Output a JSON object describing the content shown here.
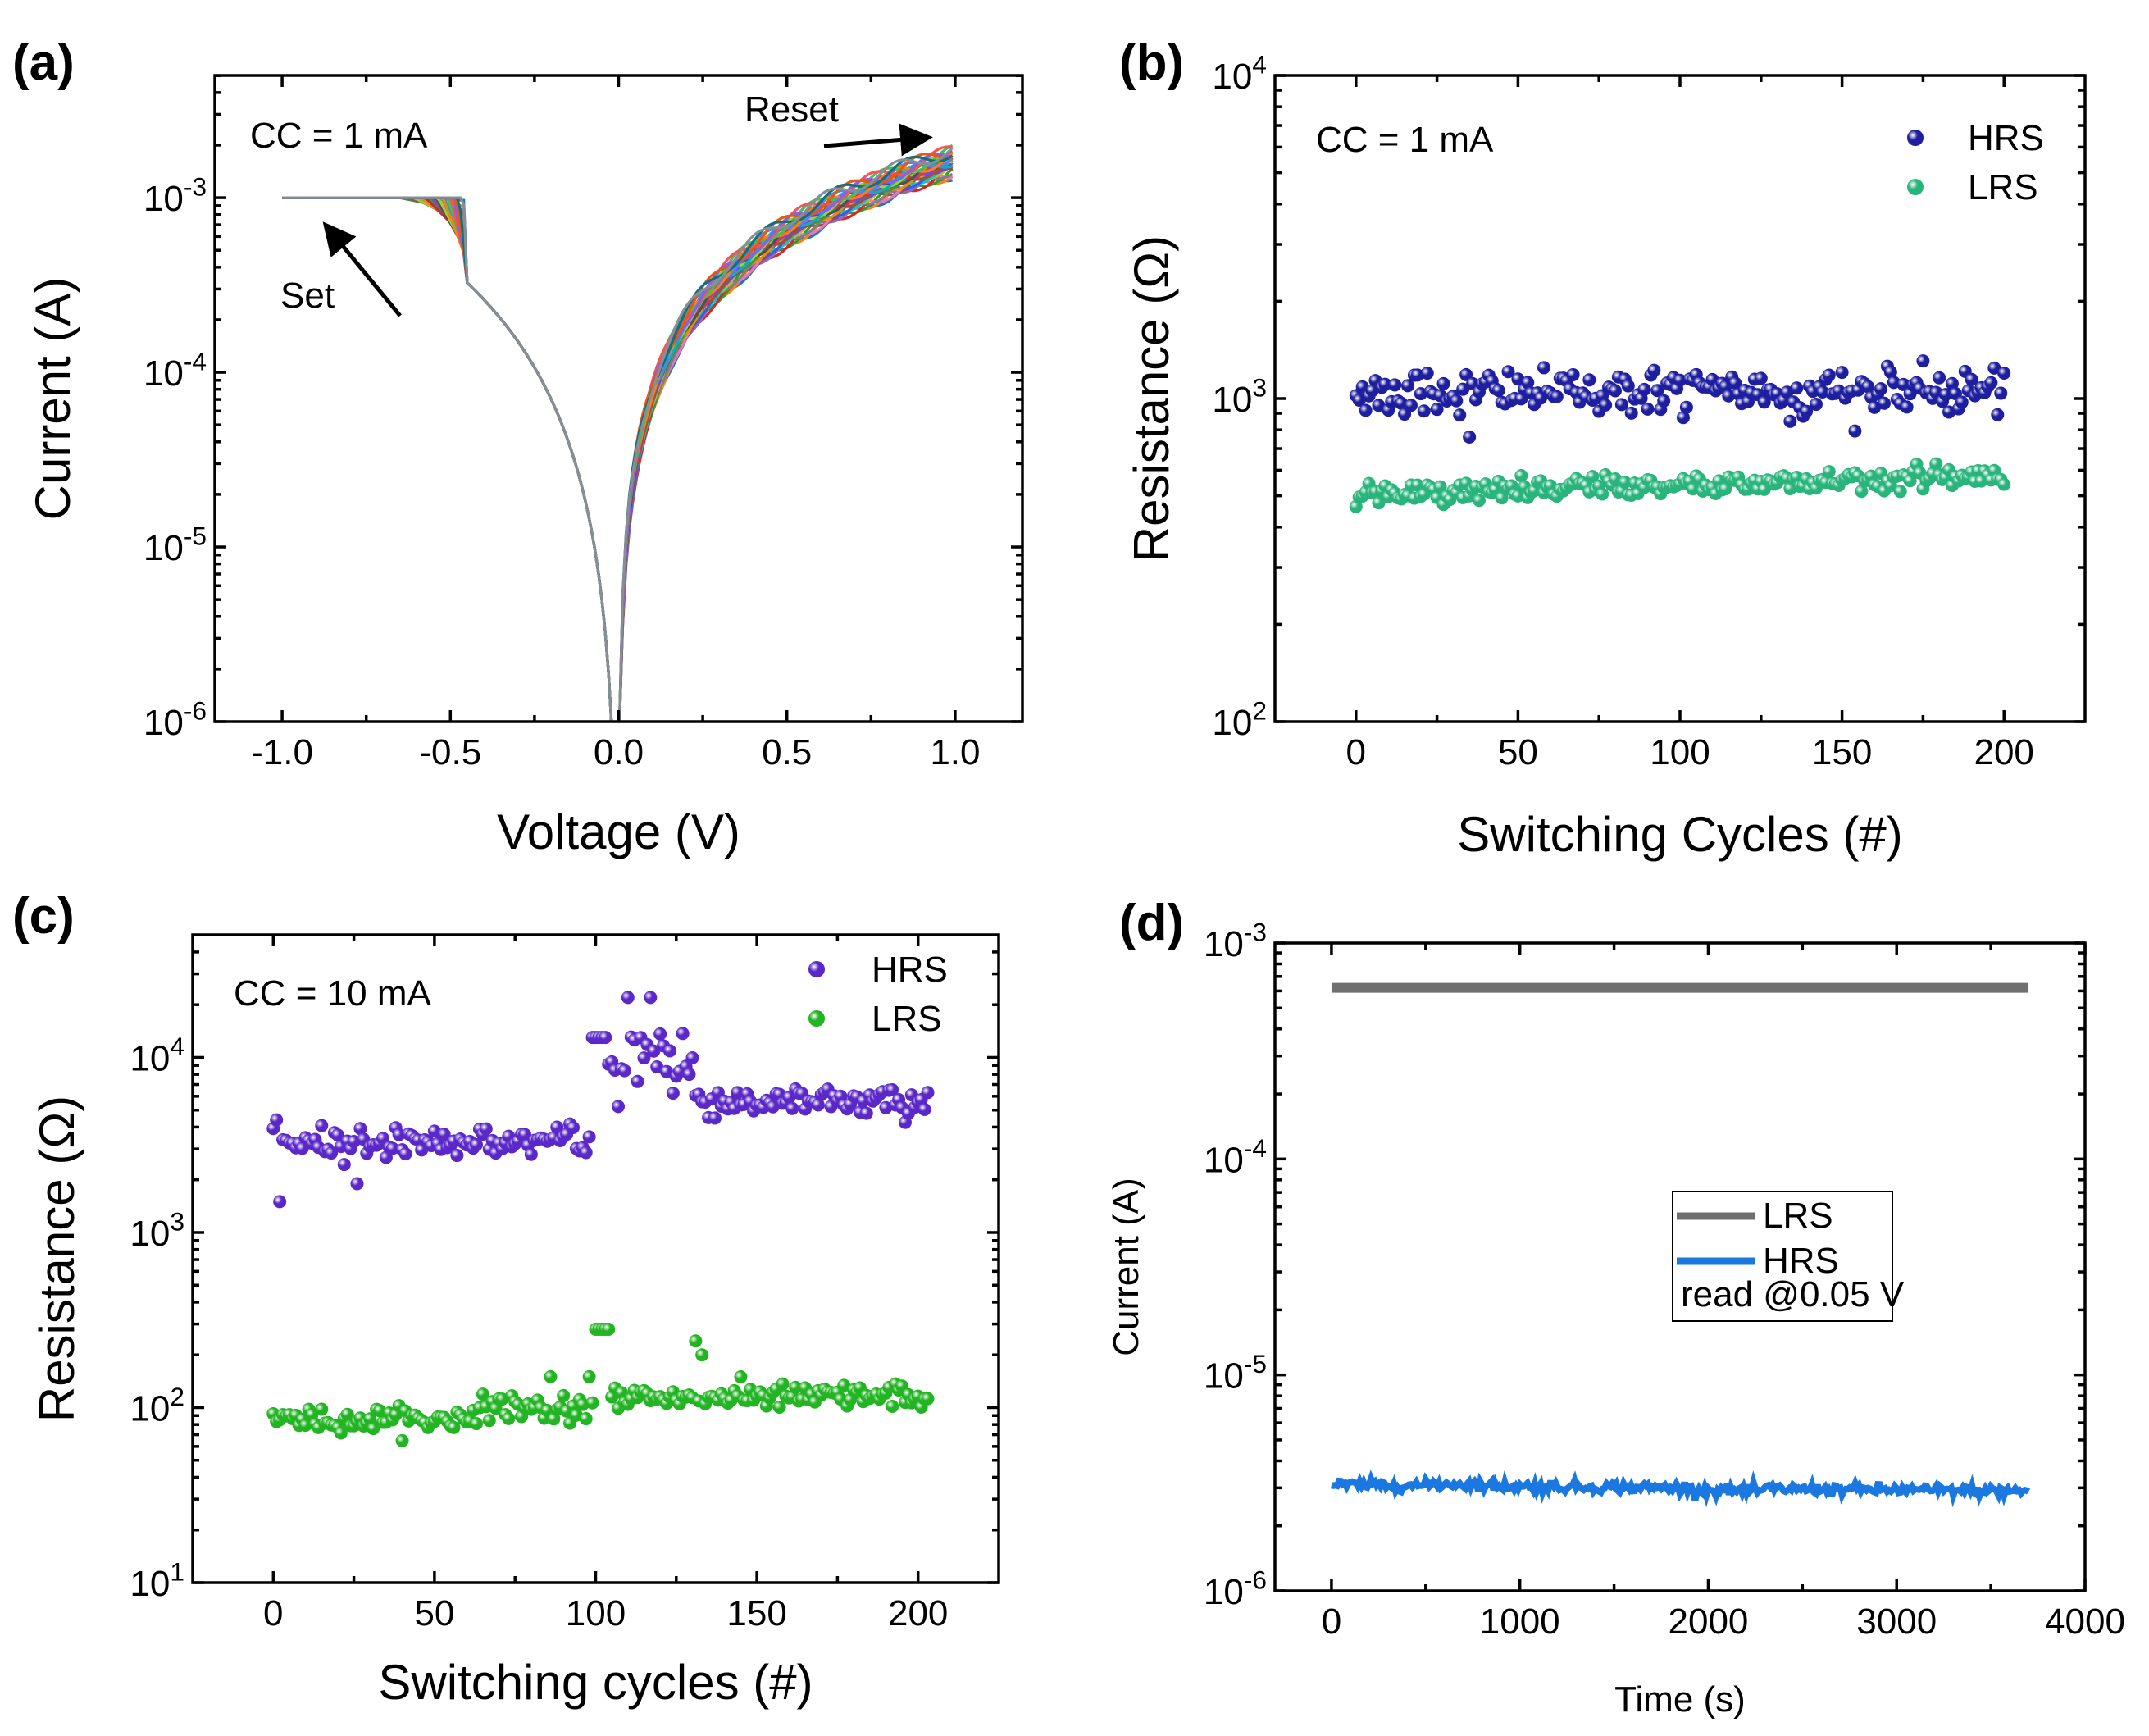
{
  "chart_data": [
    {
      "panel": "(a)",
      "type": "line",
      "title": "",
      "xlabel": "Voltage (V)",
      "ylabel": "Current (A)",
      "xlim": [
        -1.2,
        1.2
      ],
      "ylim_log10": [
        -6,
        -2.3
      ],
      "xticks": [
        -1.0,
        -0.5,
        0.0,
        0.5,
        1.0
      ],
      "xtick_labels": [
        "-1.0",
        "-0.5",
        "0.0",
        "0.5",
        "1.0"
      ],
      "yticks": [
        {
          "base": "10",
          "exp": "-6",
          "log": -6
        },
        {
          "base": "10",
          "exp": "-5",
          "log": -5
        },
        {
          "base": "10",
          "exp": "-4",
          "log": -4
        },
        {
          "base": "10",
          "exp": "-3",
          "log": -3
        }
      ],
      "annotations": {
        "cc": "CC = 1 mA",
        "set": "Set",
        "reset": "Reset"
      },
      "compliance_current": 0.001,
      "n_sweeps": 28,
      "sweep": {
        "set_voltage_range": [
          -0.66,
          -0.47
        ],
        "current_at_neg_0_5_log10": [
          -3.0,
          -3.4
        ],
        "current_at_pos_1_0_log10": [
          -2.86,
          -2.72
        ],
        "current_at_pos_0_5_log10": [
          -3.35,
          -3.05
        ],
        "current_at_0_1_log10": [
          -4.6,
          -4.2
        ]
      }
    },
    {
      "panel": "(b)",
      "type": "scatter",
      "xlabel": "Switching Cycles (#)",
      "ylabel": "Resistance (Ω)",
      "xlim": [
        -25,
        225
      ],
      "ylim_log10": [
        2,
        4
      ],
      "xticks": [
        0,
        50,
        100,
        150,
        200
      ],
      "xtick_labels": [
        "0",
        "50",
        "100",
        "150",
        "200"
      ],
      "yticks": [
        {
          "base": "10",
          "exp": "2",
          "log": 2
        },
        {
          "base": "10",
          "exp": "3",
          "log": 3
        },
        {
          "base": "10",
          "exp": "4",
          "log": 4
        }
      ],
      "annotation": "CC = 1 mA",
      "cycles": [
        0,
        200
      ],
      "series": [
        {
          "name": "HRS",
          "color": "#1e1ea0",
          "mean_ohm": 1050,
          "range_ohm": [
            880,
            1220
          ],
          "outliers": [
            {
              "cycle": 35,
              "ohm": 760
            },
            {
              "cycle": 134,
              "ohm": 850
            }
          ]
        },
        {
          "name": "LRS",
          "color": "#28b47a",
          "mean_ohm": 540,
          "range_ohm": [
            490,
            620
          ],
          "trend": "slight increase from ~500 to ~580"
        }
      ]
    },
    {
      "panel": "(c)",
      "type": "scatter",
      "xlabel": "Switching cycles (#)",
      "ylabel": "Resistance (Ω)",
      "xlim": [
        -25,
        225
      ],
      "ylim_log10": [
        1,
        4.7
      ],
      "xticks": [
        0,
        50,
        100,
        150,
        200
      ],
      "xtick_labels": [
        "0",
        "50",
        "100",
        "150",
        "200"
      ],
      "yticks": [
        {
          "base": "10",
          "exp": "1",
          "log": 1
        },
        {
          "base": "10",
          "exp": "2",
          "log": 2
        },
        {
          "base": "10",
          "exp": "3",
          "log": 3
        },
        {
          "base": "10",
          "exp": "4",
          "log": 4
        }
      ],
      "annotation": "CC = 10 mA",
      "cycles": [
        0,
        203
      ],
      "series": [
        {
          "name": "HRS",
          "color": "#5a28c8",
          "segments": [
            {
              "cycles": [
                0,
                99
              ],
              "mean_ohm": 3300,
              "range_ohm": [
                2500,
                4300
              ]
            },
            {
              "cycles": [
                100,
                130
              ],
              "mean_ohm": 9500,
              "range_ohm": [
                5000,
                22000
              ]
            },
            {
              "cycles": [
                131,
                203
              ],
              "mean_ohm": 5600,
              "range_ohm": [
                4200,
                9000
              ]
            }
          ],
          "highlights": [
            {
              "cycle": 2,
              "ohm": 1500
            },
            {
              "cycle": 26,
              "ohm": 1900
            },
            {
              "cycle": 110,
              "ohm": 22000
            },
            {
              "cycle": 117,
              "ohm": 22000
            }
          ]
        },
        {
          "name": "LRS",
          "color": "#22b422",
          "segments": [
            {
              "cycles": [
                0,
                60
              ],
              "mean_ohm": 85,
              "range_ohm": [
                78,
                95
              ]
            },
            {
              "cycles": [
                61,
                99
              ],
              "mean_ohm": 100,
              "range_ohm": [
                85,
                115
              ]
            },
            {
              "cycles": [
                100,
                203
              ],
              "mean_ohm": 115,
              "range_ohm": [
                90,
                145
              ]
            }
          ],
          "highlights": [
            {
              "cycle": 100,
              "ohm": 280
            },
            {
              "cycle": 104,
              "ohm": 280
            },
            {
              "cycle": 131,
              "ohm": 240
            },
            {
              "cycle": 133,
              "ohm": 200
            },
            {
              "cycle": 86,
              "ohm": 150
            },
            {
              "cycle": 98,
              "ohm": 150
            }
          ]
        }
      ]
    },
    {
      "panel": "(d)",
      "type": "line",
      "xlabel": "Time (s)",
      "ylabel": "Current (A)",
      "xlim": [
        -300,
        4000
      ],
      "ylim_log10": [
        -6,
        -3
      ],
      "xticks": [
        0,
        1000,
        2000,
        3000,
        4000
      ],
      "xtick_labels": [
        "0",
        "1000",
        "2000",
        "3000",
        "4000"
      ],
      "yticks": [
        {
          "base": "10",
          "exp": "-6",
          "log": -6
        },
        {
          "base": "10",
          "exp": "-5",
          "log": -5
        },
        {
          "base": "10",
          "exp": "-4",
          "log": -4
        },
        {
          "base": "10",
          "exp": "-3",
          "log": -3
        }
      ],
      "legend_note": "read @0.05 V",
      "series": [
        {
          "name": "LRS",
          "color": "#707070",
          "time_range_s": [
            0,
            3700
          ],
          "current_A": 0.00062
        },
        {
          "name": "HRS",
          "color": "#1a78e0",
          "time_range_s": [
            0,
            3700
          ],
          "current_A_start": 3.1e-06,
          "current_A_end": 2.9e-06
        }
      ]
    }
  ]
}
